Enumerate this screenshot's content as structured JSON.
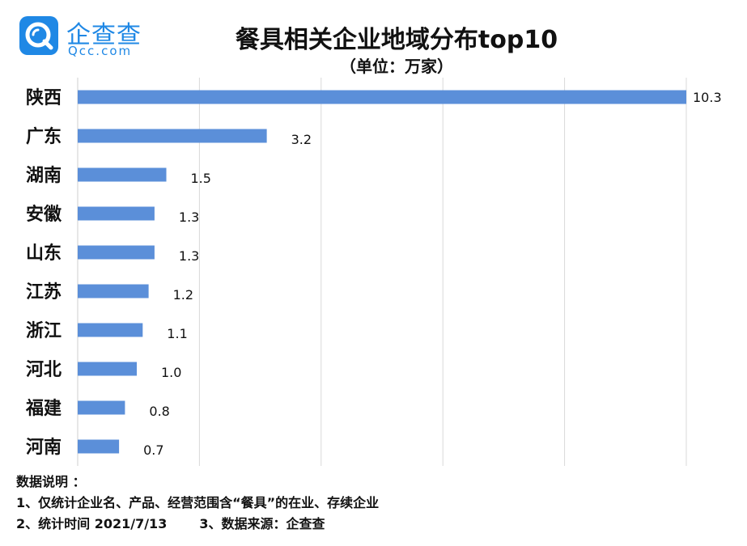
{
  "logo": {
    "name": "企查查",
    "domain": "Qcc.com",
    "brand_color": "#1f88e5"
  },
  "header": {
    "title": "餐具相关企业地域分布top10",
    "subtitle": "（单位：万家）"
  },
  "chart_data": {
    "type": "bar",
    "orientation": "horizontal",
    "title": "餐具相关企业地域分布top10",
    "subtitle": "（单位：万家）",
    "categories": [
      "陕西",
      "广东",
      "湖南",
      "安徽",
      "山东",
      "江苏",
      "浙江",
      "河北",
      "福建",
      "河南"
    ],
    "values": [
      10.3,
      3.2,
      1.5,
      1.3,
      1.3,
      1.2,
      1.1,
      1.0,
      0.8,
      0.7
    ],
    "value_labels": [
      "10.3",
      "3.2",
      "1.5",
      "1.3",
      "1.3",
      "1.2",
      "1.1",
      "1.0",
      "0.8",
      "0.7"
    ],
    "xlim": [
      0,
      10.3
    ],
    "bar_color": "#5b8fd9",
    "grid": true,
    "xlabel": "",
    "ylabel": ""
  },
  "notes": {
    "heading": "数据说明 ：",
    "line1": "1、仅统计企业名、产品、经营范围含“餐具”的在业、存续企业",
    "line2a": "2、统计时间 2021/7/13",
    "line2b": "3、数据来源：企查查"
  }
}
